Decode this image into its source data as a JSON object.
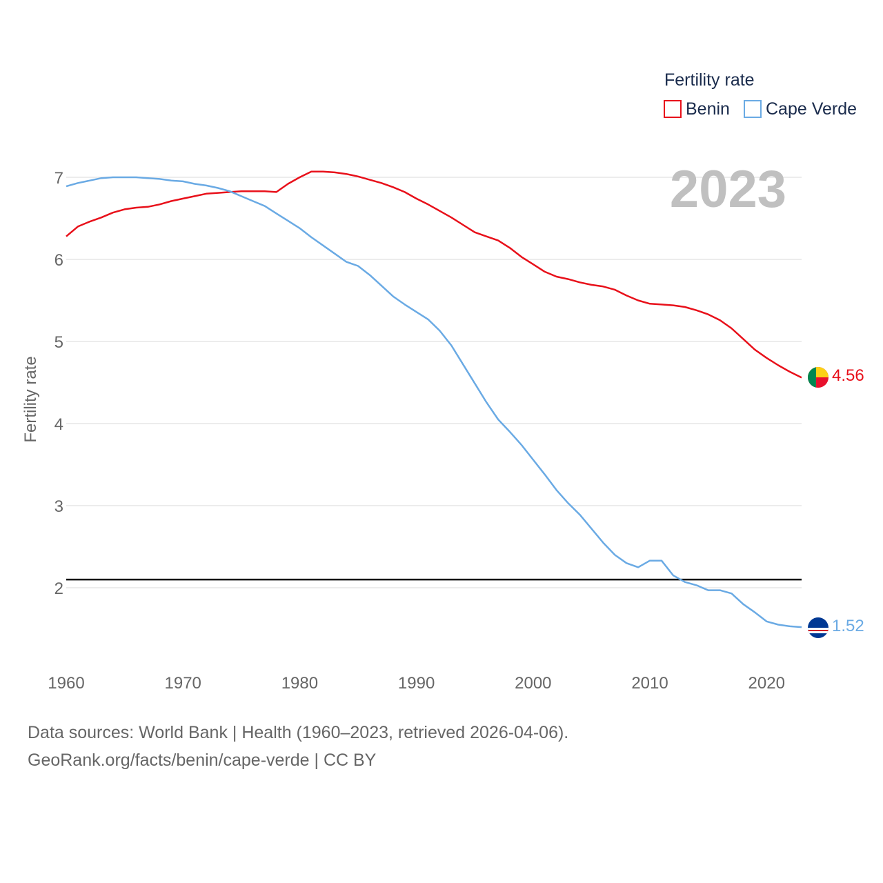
{
  "colors": {
    "benin": "#e8101a",
    "cape_verde": "#6aaae4",
    "grid": "#e6e6e6",
    "axis_text": "#666666",
    "legend_text": "#1a2b4c",
    "year_text": "#c0c0c0",
    "reference": "#000000"
  },
  "chart_data": {
    "type": "line",
    "title": "",
    "xlabel": "",
    "ylabel": "Fertility rate",
    "xlim": [
      1960,
      2023
    ],
    "ylim": [
      1.0,
      7.5
    ],
    "x_ticks": [
      1960,
      1970,
      1980,
      1990,
      2000,
      2010,
      2020
    ],
    "y_ticks": [
      2,
      3,
      4,
      5,
      6,
      7
    ],
    "grid": true,
    "year_label": "2023",
    "legend": {
      "title": "Fertility rate",
      "position": "top-right"
    },
    "reference_line": {
      "y": 2.1
    },
    "series": [
      {
        "name": "Benin",
        "color": "#e8101a",
        "end_label": "4.56",
        "flag": "benin-flag-icon",
        "x": [
          1960,
          1961,
          1962,
          1963,
          1964,
          1965,
          1966,
          1967,
          1968,
          1969,
          1970,
          1971,
          1972,
          1973,
          1974,
          1975,
          1976,
          1977,
          1978,
          1979,
          1980,
          1981,
          1982,
          1983,
          1984,
          1985,
          1986,
          1987,
          1988,
          1989,
          1990,
          1991,
          1992,
          1993,
          1994,
          1995,
          1996,
          1997,
          1998,
          1999,
          2000,
          2001,
          2002,
          2003,
          2004,
          2005,
          2006,
          2007,
          2008,
          2009,
          2010,
          2011,
          2012,
          2013,
          2014,
          2015,
          2016,
          2017,
          2018,
          2019,
          2020,
          2021,
          2022,
          2023
        ],
        "values": [
          6.28,
          6.4,
          6.46,
          6.51,
          6.57,
          6.61,
          6.63,
          6.64,
          6.67,
          6.71,
          6.74,
          6.77,
          6.8,
          6.81,
          6.82,
          6.83,
          6.83,
          6.83,
          6.82,
          6.92,
          7.0,
          7.07,
          7.07,
          7.06,
          7.04,
          7.01,
          6.97,
          6.93,
          6.88,
          6.82,
          6.74,
          6.67,
          6.59,
          6.51,
          6.42,
          6.33,
          6.28,
          6.23,
          6.14,
          6.03,
          5.94,
          5.85,
          5.79,
          5.76,
          5.72,
          5.69,
          5.67,
          5.63,
          5.56,
          5.5,
          5.46,
          5.45,
          5.44,
          5.42,
          5.38,
          5.33,
          5.26,
          5.16,
          5.03,
          4.9,
          4.8,
          4.71,
          4.63,
          4.56
        ]
      },
      {
        "name": "Cape Verde",
        "color": "#6aaae4",
        "end_label": "1.52",
        "flag": "cape-verde-flag-icon",
        "x": [
          1960,
          1961,
          1962,
          1963,
          1964,
          1965,
          1966,
          1967,
          1968,
          1969,
          1970,
          1971,
          1972,
          1973,
          1974,
          1975,
          1976,
          1977,
          1978,
          1979,
          1980,
          1981,
          1982,
          1983,
          1984,
          1985,
          1986,
          1987,
          1988,
          1989,
          1990,
          1991,
          1992,
          1993,
          1994,
          1995,
          1996,
          1997,
          1998,
          1999,
          2000,
          2001,
          2002,
          2003,
          2004,
          2005,
          2006,
          2007,
          2008,
          2009,
          2010,
          2011,
          2012,
          2013,
          2014,
          2015,
          2016,
          2017,
          2018,
          2019,
          2020,
          2021,
          2022,
          2023
        ],
        "values": [
          6.89,
          6.93,
          6.96,
          6.99,
          7.0,
          7.0,
          7.0,
          6.99,
          6.98,
          6.96,
          6.95,
          6.92,
          6.9,
          6.87,
          6.83,
          6.77,
          6.71,
          6.65,
          6.56,
          6.47,
          6.38,
          6.27,
          6.17,
          6.07,
          5.97,
          5.92,
          5.81,
          5.68,
          5.55,
          5.45,
          5.36,
          5.27,
          5.13,
          4.95,
          4.72,
          4.49,
          4.26,
          4.05,
          3.9,
          3.74,
          3.56,
          3.38,
          3.19,
          3.03,
          2.89,
          2.72,
          2.55,
          2.4,
          2.3,
          2.25,
          2.33,
          2.33,
          2.15,
          2.07,
          2.03,
          1.97,
          1.97,
          1.93,
          1.8,
          1.7,
          1.59,
          1.55,
          1.53,
          1.52
        ]
      }
    ]
  },
  "footer": {
    "line1": "Data sources: World Bank | Health (1960–2023, retrieved 2026-04-06).",
    "line2": "GeoRank.org/facts/benin/cape-verde | CC BY"
  }
}
